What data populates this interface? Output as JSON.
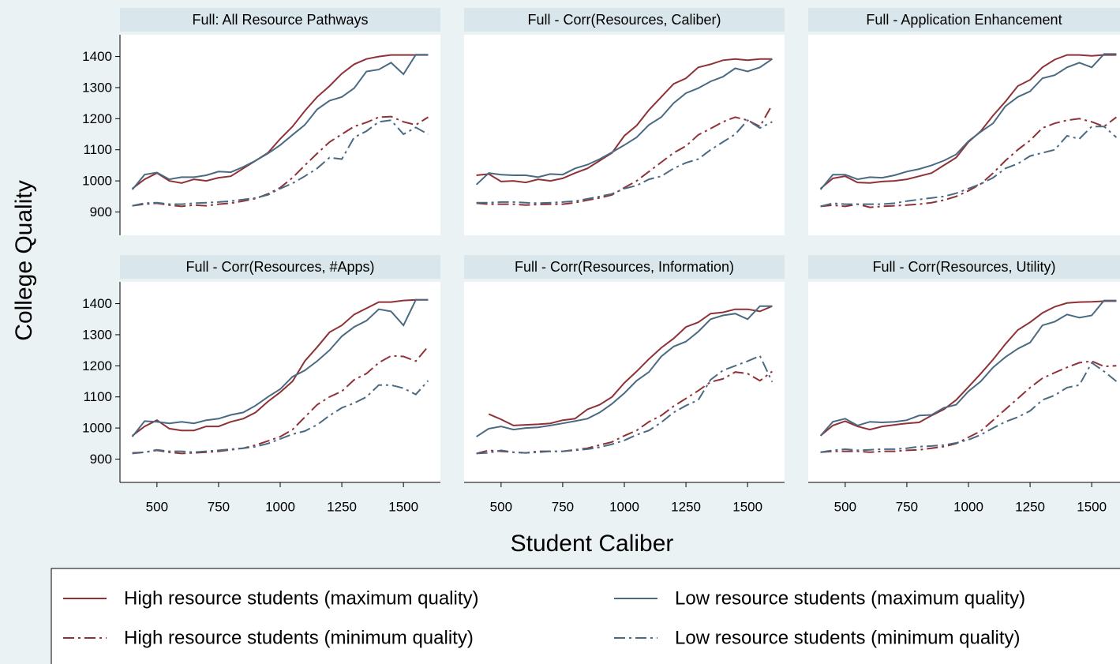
{
  "chart_data": {
    "type": "line",
    "xlabel": "Student Caliber",
    "ylabel": "College Quality",
    "xlim": [
      350,
      1650
    ],
    "ylim": [
      825,
      1470
    ],
    "xticks": [
      500,
      750,
      1000,
      1250,
      1500
    ],
    "yticks": [
      900,
      1000,
      1100,
      1200,
      1300,
      1400
    ],
    "x": [
      400,
      450,
      500,
      550,
      600,
      650,
      700,
      750,
      800,
      850,
      900,
      950,
      1000,
      1050,
      1100,
      1150,
      1200,
      1250,
      1300,
      1350,
      1400,
      1450,
      1500,
      1550,
      1600
    ],
    "series": [
      {
        "name": "High resource students (maximum quality)",
        "color": "#8e3238",
        "dash": "solid"
      },
      {
        "name": "High resource students (minimum quality)",
        "color": "#8e3238",
        "dash": "longdash-dot"
      },
      {
        "name": "Low resource students (maximum quality)",
        "color": "#4a6a82",
        "dash": "solid"
      },
      {
        "name": "Low resource students (minimum quality)",
        "color": "#4a6a82",
        "dash": "longdash-dot"
      }
    ],
    "panels": [
      {
        "title": "Full: All Resource Pathways",
        "series": [
          {
            "values": [
              975,
              1005,
              1025,
              1000,
              993,
              1005,
              1000,
              1010,
              1015,
              1040,
              1065,
              1090,
              1135,
              1175,
              1225,
              1270,
              1305,
              1345,
              1375,
              1392,
              1400,
              1405,
              1405,
              1405,
              1405
            ]
          },
          {
            "values": [
              920,
              925,
              928,
              922,
              918,
              922,
              920,
              925,
              928,
              935,
              943,
              958,
              978,
              1010,
              1050,
              1088,
              1125,
              1150,
              1175,
              1188,
              1205,
              1207,
              1190,
              1180,
              1205
            ]
          },
          {
            "values": [
              972,
              1020,
              1027,
              1005,
              1012,
              1012,
              1018,
              1030,
              1028,
              1045,
              1065,
              1088,
              1115,
              1148,
              1180,
              1230,
              1258,
              1270,
              1298,
              1352,
              1358,
              1380,
              1343,
              1406,
              1406
            ]
          },
          {
            "values": [
              920,
              928,
              930,
              925,
              925,
              928,
              930,
              932,
              935,
              940,
              945,
              955,
              975,
              992,
              1015,
              1040,
              1075,
              1070,
              1140,
              1160,
              1190,
              1195,
              1150,
              1172,
              1150
            ]
          }
        ]
      },
      {
        "title": "Full - Corr(Resources, Caliber)",
        "series": [
          {
            "values": [
              1018,
              1022,
              998,
              1000,
              995,
              1005,
              1000,
              1008,
              1025,
              1040,
              1065,
              1090,
              1145,
              1178,
              1228,
              1270,
              1312,
              1330,
              1365,
              1375,
              1388,
              1392,
              1388,
              1392,
              1392
            ]
          },
          {
            "values": [
              928,
              925,
              925,
              925,
              922,
              924,
              925,
              925,
              930,
              938,
              945,
              955,
              978,
              1000,
              1030,
              1060,
              1090,
              1112,
              1148,
              1168,
              1190,
              1205,
              1195,
              1175,
              1245
            ]
          },
          {
            "values": [
              988,
              1025,
              1020,
              1018,
              1018,
              1012,
              1022,
              1020,
              1040,
              1052,
              1070,
              1092,
              1115,
              1140,
              1180,
              1205,
              1250,
              1282,
              1298,
              1320,
              1335,
              1362,
              1352,
              1365,
              1392
            ]
          },
          {
            "values": [
              930,
              930,
              932,
              932,
              930,
              928,
              930,
              932,
              935,
              942,
              950,
              958,
              975,
              985,
              1005,
              1015,
              1040,
              1058,
              1070,
              1100,
              1125,
              1150,
              1195,
              1170,
              1190
            ]
          }
        ]
      },
      {
        "title": "Full - Application Enhancement",
        "series": [
          {
            "values": [
              975,
              1008,
              1015,
              995,
              993,
              998,
              1000,
              1005,
              1015,
              1025,
              1050,
              1075,
              1125,
              1160,
              1210,
              1255,
              1305,
              1325,
              1365,
              1390,
              1405,
              1405,
              1402,
              1405,
              1405
            ]
          },
          {
            "values": [
              918,
              922,
              918,
              925,
              915,
              918,
              920,
              922,
              925,
              930,
              938,
              950,
              968,
              990,
              1025,
              1065,
              1100,
              1130,
              1170,
              1185,
              1195,
              1200,
              1190,
              1175,
              1205
            ]
          },
          {
            "values": [
              972,
              1020,
              1020,
              1005,
              1012,
              1010,
              1018,
              1030,
              1038,
              1050,
              1065,
              1085,
              1128,
              1158,
              1185,
              1240,
              1270,
              1288,
              1330,
              1340,
              1365,
              1380,
              1365,
              1408,
              1408
            ]
          },
          {
            "values": [
              918,
              928,
              925,
              925,
              925,
              925,
              928,
              935,
              940,
              945,
              950,
              960,
              975,
              990,
              1010,
              1040,
              1055,
              1080,
              1090,
              1100,
              1145,
              1135,
              1175,
              1175,
              1140
            ]
          }
        ]
      },
      {
        "title": "Full - Corr(Resources, #Apps)",
        "series": [
          {
            "values": [
              975,
              1005,
              1025,
              998,
              992,
              992,
              1005,
              1005,
              1020,
              1030,
              1050,
              1085,
              1115,
              1150,
              1215,
              1260,
              1308,
              1330,
              1365,
              1385,
              1405,
              1405,
              1410,
              1412,
              1412
            ]
          },
          {
            "values": [
              920,
              922,
              928,
              922,
              918,
              920,
              922,
              925,
              930,
              935,
              945,
              958,
              972,
              995,
              1035,
              1075,
              1100,
              1118,
              1155,
              1175,
              1210,
              1232,
              1230,
              1215,
              1262
            ]
          },
          {
            "values": [
              972,
              1022,
              1020,
              1015,
              1020,
              1015,
              1025,
              1030,
              1042,
              1050,
              1072,
              1100,
              1125,
              1165,
              1185,
              1215,
              1250,
              1295,
              1325,
              1345,
              1382,
              1375,
              1330,
              1412,
              1412
            ]
          },
          {
            "values": [
              918,
              922,
              930,
              925,
              925,
              922,
              925,
              928,
              932,
              935,
              940,
              950,
              965,
              980,
              990,
              1010,
              1040,
              1065,
              1080,
              1100,
              1138,
              1138,
              1128,
              1108,
              1152
            ]
          }
        ]
      },
      {
        "title": "Full - Corr(Resources, Information)",
        "series": [
          {
            "values": [
              null,
              1045,
              1028,
              1008,
              1010,
              1012,
              1015,
              1025,
              1030,
              1060,
              1075,
              1100,
              1145,
              1182,
              1222,
              1258,
              1288,
              1325,
              1340,
              1368,
              1372,
              1382,
              1382,
              1375,
              1392
            ]
          },
          {
            "values": [
              918,
              928,
              925,
              922,
              920,
              925,
              925,
              925,
              930,
              935,
              945,
              955,
              975,
              992,
              1020,
              1040,
              1070,
              1095,
              1120,
              1148,
              1158,
              1180,
              1175,
              1152,
              1182
            ]
          },
          {
            "values": [
              972,
              998,
              1005,
              995,
              1000,
              1002,
              1008,
              1015,
              1022,
              1030,
              1050,
              1078,
              1112,
              1152,
              1180,
              1230,
              1262,
              1278,
              1310,
              1350,
              1362,
              1368,
              1350,
              1392,
              1392
            ]
          },
          {
            "values": [
              918,
              920,
              928,
              922,
              920,
              922,
              925,
              925,
              928,
              932,
              938,
              948,
              960,
              978,
              992,
              1018,
              1050,
              1072,
              1090,
              1155,
              1185,
              1200,
              1215,
              1232,
              1148
            ]
          }
        ]
      },
      {
        "title": "Full - Corr(Resources, Utility)",
        "series": [
          {
            "values": [
              975,
              1008,
              1022,
              1005,
              995,
              1005,
              1010,
              1015,
              1018,
              1040,
              1060,
              1090,
              1132,
              1175,
              1220,
              1270,
              1315,
              1340,
              1370,
              1390,
              1402,
              1405,
              1406,
              1408,
              1408
            ]
          },
          {
            "values": [
              922,
              925,
              925,
              925,
              922,
              925,
              925,
              928,
              930,
              935,
              940,
              950,
              970,
              990,
              1025,
              1060,
              1095,
              1130,
              1160,
              1178,
              1195,
              1210,
              1215,
              1198,
              1200
            ]
          },
          {
            "values": [
              975,
              1020,
              1030,
              1008,
              1020,
              1018,
              1020,
              1025,
              1040,
              1042,
              1065,
              1075,
              1118,
              1150,
              1195,
              1228,
              1255,
              1275,
              1330,
              1342,
              1365,
              1355,
              1362,
              1410,
              1410
            ]
          },
          {
            "values": [
              922,
              928,
              932,
              928,
              930,
              932,
              932,
              935,
              940,
              942,
              945,
              952,
              962,
              978,
              1000,
              1020,
              1035,
              1055,
              1090,
              1105,
              1130,
              1138,
              1210,
              1182,
              1150
            ]
          }
        ]
      }
    ]
  }
}
